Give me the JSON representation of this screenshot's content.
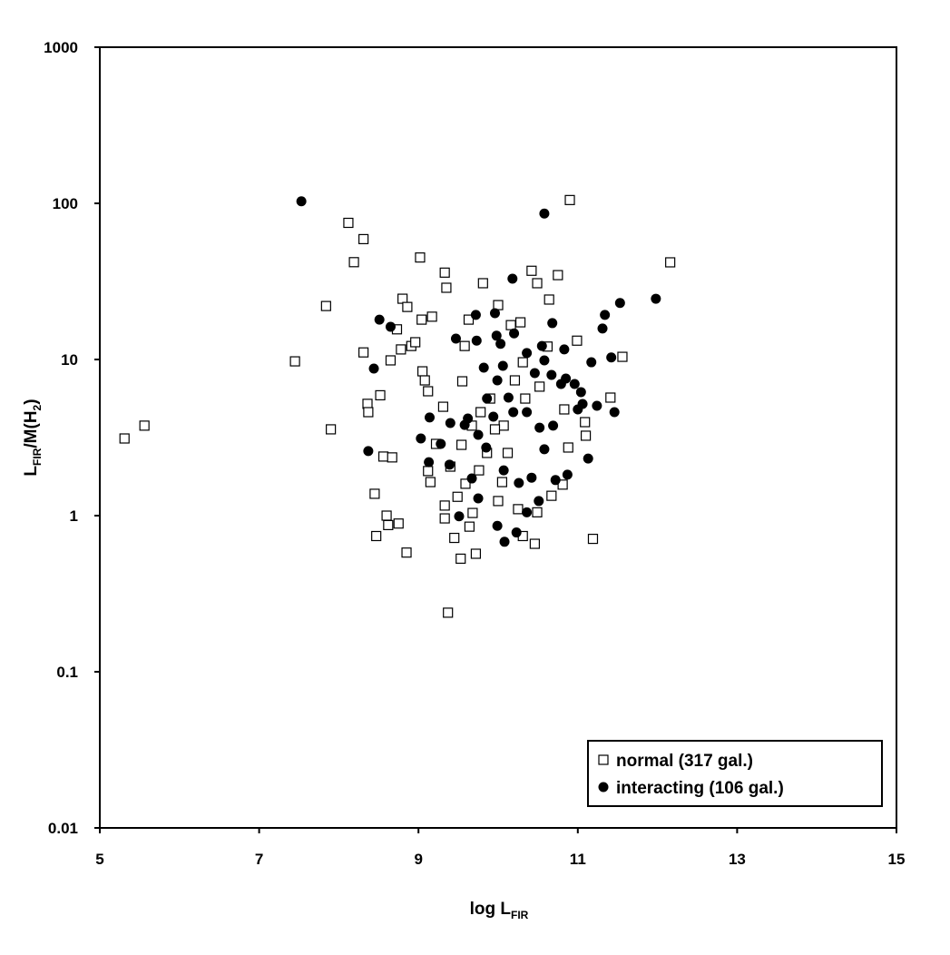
{
  "chart_data": {
    "type": "scatter",
    "xlabel": [
      "log L",
      "FIR"
    ],
    "ylabel": [
      "L",
      "FIR",
      "/M(H",
      "2",
      ")"
    ],
    "xlim": [
      5,
      15
    ],
    "xticks": [
      5,
      7,
      9,
      11,
      13,
      15
    ],
    "ylim": [
      0.01,
      1000
    ],
    "yticks": [
      0.01,
      0.1,
      1,
      10,
      100,
      1000
    ],
    "ylog": true,
    "legend": "lower right",
    "series": [
      {
        "name": "normal (317 gal.)",
        "marker": "square",
        "color": "#000000",
        "x": [
          5.31,
          5.56,
          7.45,
          7.84,
          7.9,
          8.12,
          8.31,
          8.19,
          8.31,
          8.36,
          8.37,
          8.45,
          8.47,
          8.6,
          8.62,
          8.75,
          8.85,
          9.02,
          8.8,
          8.86,
          9.33,
          9.35,
          9.17,
          9.04,
          9.05,
          9.08,
          9.12,
          9.31,
          9.33,
          9.33,
          9.37,
          9.45,
          9.53,
          9.64,
          9.72,
          9.81,
          10.0,
          10.16,
          10.28,
          10.42,
          10.49,
          10.64,
          10.75,
          10.9,
          10.99,
          11.09,
          11.1,
          11.19,
          11.41,
          11.56,
          12.16,
          8.56,
          8.67,
          8.65,
          8.73,
          8.78,
          8.91,
          8.96,
          9.12,
          9.15,
          9.22,
          9.4,
          9.49,
          9.54,
          9.59,
          9.68,
          9.76,
          9.86,
          10.0,
          10.05,
          10.25,
          10.31,
          10.46,
          10.49,
          10.67,
          10.81,
          10.88,
          10.83,
          9.9,
          10.07,
          10.21,
          10.34,
          10.52,
          10.62,
          9.55,
          9.67,
          9.78,
          9.58,
          9.63,
          9.96,
          10.12,
          10.31,
          8.52
        ],
        "y": [
          3.12,
          3.77,
          9.73,
          22,
          3.57,
          75,
          59,
          42,
          11.1,
          5.2,
          4.6,
          1.38,
          0.74,
          1.0,
          0.87,
          0.89,
          0.58,
          45,
          24.5,
          21.7,
          36,
          28.8,
          18.8,
          18,
          8.4,
          7.35,
          6.26,
          4.98,
          1.16,
          0.96,
          0.239,
          0.72,
          0.53,
          0.85,
          0.57,
          30.8,
          22.3,
          16.6,
          17.3,
          37,
          30.8,
          24.2,
          34.7,
          105,
          13.2,
          3.97,
          3.25,
          0.71,
          5.7,
          10.4,
          41.9,
          2.39,
          2.36,
          9.87,
          15.6,
          11.6,
          12.2,
          12.9,
          1.93,
          1.64,
          2.88,
          2.06,
          1.32,
          2.84,
          1.6,
          1.04,
          1.95,
          2.52,
          1.24,
          1.64,
          1.1,
          0.74,
          0.66,
          1.05,
          1.34,
          1.58,
          2.73,
          4.79,
          5.62,
          3.77,
          7.35,
          5.62,
          6.7,
          12.1,
          7.25,
          3.77,
          4.6,
          12.2,
          18,
          3.57,
          2.52,
          9.6,
          5.9
        ]
      },
      {
        "name": "interacting (106 gal.)",
        "marker": "circle",
        "color": "#000000",
        "x": [
          7.53,
          10.58,
          11.98,
          11.53,
          11.34,
          11.31,
          8.51,
          8.65,
          8.44,
          8.37,
          9.14,
          9.03,
          9.13,
          9.4,
          9.47,
          9.72,
          9.96,
          10.18,
          9.73,
          9.98,
          10.03,
          10.2,
          10.36,
          10.55,
          10.68,
          10.83,
          10.85,
          10.96,
          11.04,
          11.06,
          11.0,
          11.17,
          11.24,
          11.42,
          11.46,
          11.13,
          10.87,
          10.72,
          10.51,
          10.36,
          10.23,
          10.08,
          9.99,
          9.51,
          9.75,
          9.67,
          9.85,
          10.07,
          10.26,
          10.42,
          10.58,
          10.69,
          10.52,
          10.36,
          10.19,
          9.94,
          9.75,
          9.58,
          9.82,
          9.99,
          10.13,
          10.46,
          10.58,
          9.86,
          10.06,
          9.62,
          9.28,
          9.39,
          10.67,
          10.79
        ],
        "y": [
          103,
          86,
          24.5,
          23,
          19.3,
          15.8,
          18,
          16.2,
          8.75,
          2.59,
          4.25,
          3.12,
          2.2,
          3.92,
          13.6,
          19.3,
          19.8,
          32.9,
          13.2,
          14.2,
          12.6,
          14.7,
          11,
          12.2,
          17.1,
          11.6,
          7.55,
          6.97,
          6.18,
          5.19,
          4.79,
          9.6,
          5.05,
          10.3,
          4.6,
          2.32,
          1.83,
          1.69,
          1.24,
          1.05,
          0.78,
          0.68,
          0.86,
          0.99,
          1.29,
          1.73,
          2.73,
          1.95,
          1.62,
          1.75,
          2.66,
          3.77,
          3.66,
          4.6,
          4.6,
          4.3,
          3.29,
          3.81,
          8.87,
          7.35,
          5.7,
          8.18,
          9.87,
          5.62,
          9.1,
          4.19,
          2.88,
          2.12,
          7.96,
          6.97
        ]
      }
    ]
  }
}
